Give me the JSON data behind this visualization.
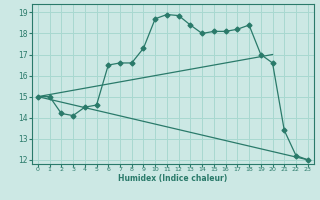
{
  "xlabel": "Humidex (Indice chaleur)",
  "bg_color": "#cce8e4",
  "line_color": "#2a7a6a",
  "grid_color": "#a8d8d0",
  "xlim": [
    -0.5,
    23.5
  ],
  "ylim": [
    11.8,
    19.4
  ],
  "xticks": [
    0,
    1,
    2,
    3,
    4,
    5,
    6,
    7,
    8,
    9,
    10,
    11,
    12,
    13,
    14,
    15,
    16,
    17,
    18,
    19,
    20,
    21,
    22,
    23
  ],
  "yticks": [
    12,
    13,
    14,
    15,
    16,
    17,
    18,
    19
  ],
  "line1_x": [
    0,
    1,
    2,
    3,
    4,
    5,
    6,
    7,
    8,
    9,
    10,
    11,
    12,
    13,
    14,
    15,
    16,
    17,
    18,
    19,
    20,
    21,
    22,
    23
  ],
  "line1_y": [
    15.0,
    15.0,
    14.2,
    14.1,
    14.5,
    14.6,
    16.5,
    16.6,
    16.6,
    17.3,
    18.7,
    18.9,
    18.85,
    18.4,
    18.0,
    18.1,
    18.1,
    18.2,
    18.4,
    17.0,
    16.6,
    13.4,
    12.2,
    12.0
  ],
  "line2_x": [
    0,
    20
  ],
  "line2_y": [
    15.0,
    17.0
  ],
  "line3_x": [
    0,
    23
  ],
  "line3_y": [
    15.0,
    12.0
  ]
}
